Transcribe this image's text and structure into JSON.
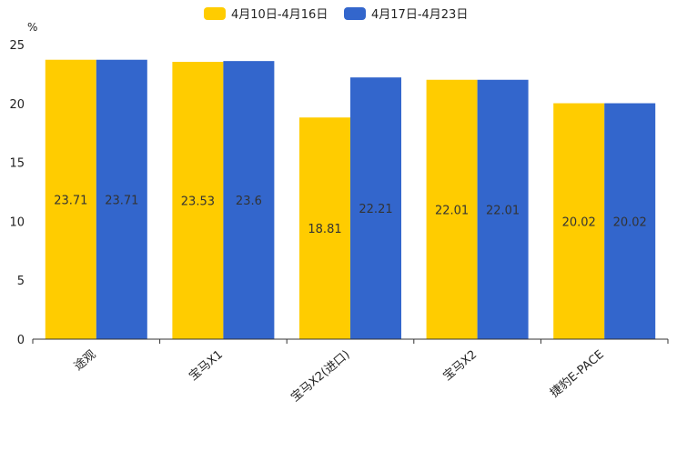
{
  "chart_data": {
    "type": "bar",
    "ylabel": "%",
    "ylim": [
      0,
      25
    ],
    "yticks": [
      0,
      5,
      10,
      15,
      20,
      25
    ],
    "categories": [
      "途观",
      "宝马X1",
      "宝马X2(进口)",
      "宝马X2",
      "捷豹E-PACE"
    ],
    "series": [
      {
        "name": "4月10日-4月16日",
        "color": "#FFCC00",
        "values": [
          23.71,
          23.53,
          18.81,
          22.01,
          20.02
        ],
        "labels": [
          "23.71",
          "23.53",
          "18.81",
          "22.01",
          "20.02"
        ]
      },
      {
        "name": "4月17日-4月23日",
        "color": "#3366CC",
        "values": [
          23.71,
          23.6,
          22.21,
          22.01,
          20.02
        ],
        "labels": [
          "23.71",
          "23.6",
          "22.21",
          "22.01",
          "20.02"
        ]
      }
    ],
    "legend_position": "top-center",
    "grid": false
  }
}
